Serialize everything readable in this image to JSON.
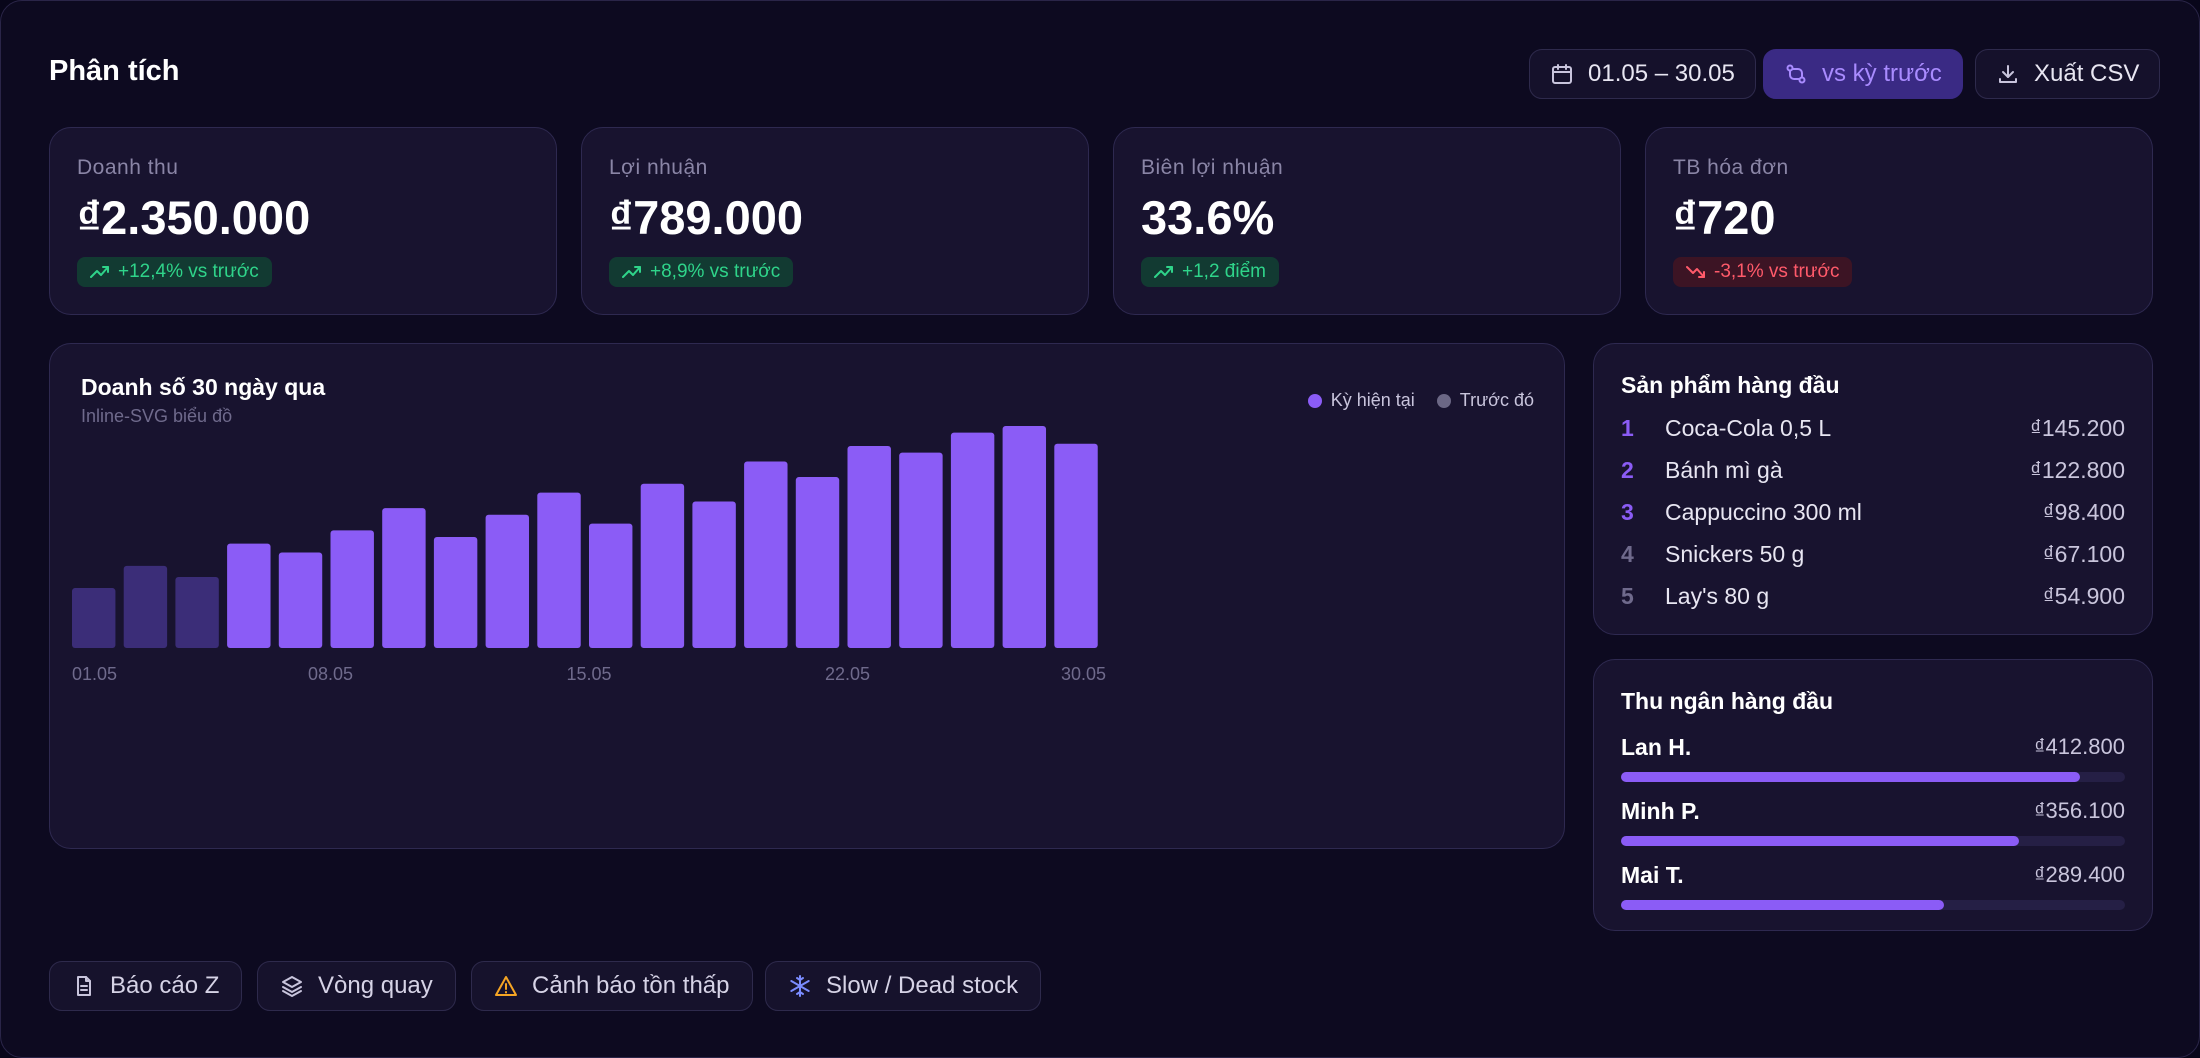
{
  "header": {
    "title": "Phân tích",
    "date_range": "01.05 – 30.05",
    "compare_label": "vs kỳ trước",
    "export_label": "Xuất CSV"
  },
  "kpis": [
    {
      "label": "Doanh thu",
      "value": "₫2.350.000",
      "change": "+12,4% vs trước",
      "trend": "up"
    },
    {
      "label": "Lợi nhuận",
      "value": "₫789.000",
      "change": "+8,9% vs trước",
      "trend": "up"
    },
    {
      "label": "Biên lợi nhuận",
      "value": "33.6%",
      "change": "+1,2 điểm",
      "trend": "up"
    },
    {
      "label": "TB hóa đơn",
      "value": "₫720",
      "change": "-3,1% vs trước",
      "trend": "down"
    }
  ],
  "sales_chart": {
    "title": "Doanh số 30 ngày qua",
    "subtitle": "Inline-SVG biểu đồ",
    "legend_current": "Kỳ hiện tại",
    "legend_previous": "Trước đó"
  },
  "chart_data": {
    "type": "bar",
    "title": "Doanh số 30 ngày qua",
    "x_tick_labels": [
      "01.05",
      "08.05",
      "15.05",
      "22.05",
      "30.05"
    ],
    "series": [
      {
        "name": "Trước đó",
        "values": [
          27,
          37,
          32
        ]
      },
      {
        "name": "Kỳ hiện tại",
        "values": [
          47,
          43,
          53,
          63,
          50,
          60,
          70,
          56,
          74,
          66,
          84,
          77,
          91,
          88,
          97,
          100,
          92
        ]
      }
    ],
    "ylim": [
      0,
      100
    ],
    "grid": false,
    "legend_position": "top-right",
    "colors": {
      "current": "#8b5cf6",
      "previous": "#3b2d78"
    }
  },
  "top_products": {
    "title": "Sản phẩm hàng đầu",
    "items": [
      {
        "rank": "1",
        "name": "Coca-Cola 0,5 L",
        "amount": "₫145.200"
      },
      {
        "rank": "2",
        "name": "Bánh mì gà",
        "amount": "₫122.800"
      },
      {
        "rank": "3",
        "name": "Cappuccino 300 ml",
        "amount": "₫98.400"
      },
      {
        "rank": "4",
        "name": "Snickers 50 g",
        "amount": "₫67.100"
      },
      {
        "rank": "5",
        "name": "Lay's 80 g",
        "amount": "₫54.900"
      }
    ]
  },
  "top_cashiers": {
    "title": "Thu ngân hàng đầu",
    "items": [
      {
        "name": "Lan H.",
        "amount": "₫412.800",
        "progress": 0.91
      },
      {
        "name": "Minh P.",
        "amount": "₫356.100",
        "progress": 0.79
      },
      {
        "name": "Mai T.",
        "amount": "₫289.400",
        "progress": 0.64
      }
    ]
  },
  "quick_actions": [
    {
      "label": "Báo cáo Z",
      "icon": "document-icon"
    },
    {
      "label": "Vòng quay",
      "icon": "layers-icon"
    },
    {
      "label": "Cảnh báo tồn thấp",
      "icon": "warning-icon"
    },
    {
      "label": "Slow / Dead stock",
      "icon": "snowflake-icon"
    }
  ],
  "colors": {
    "accent": "#8b5cf6",
    "positive": "#2fd48a",
    "negative": "#ff5a6a",
    "warning": "#f5a524",
    "background": "#0d0a20"
  }
}
